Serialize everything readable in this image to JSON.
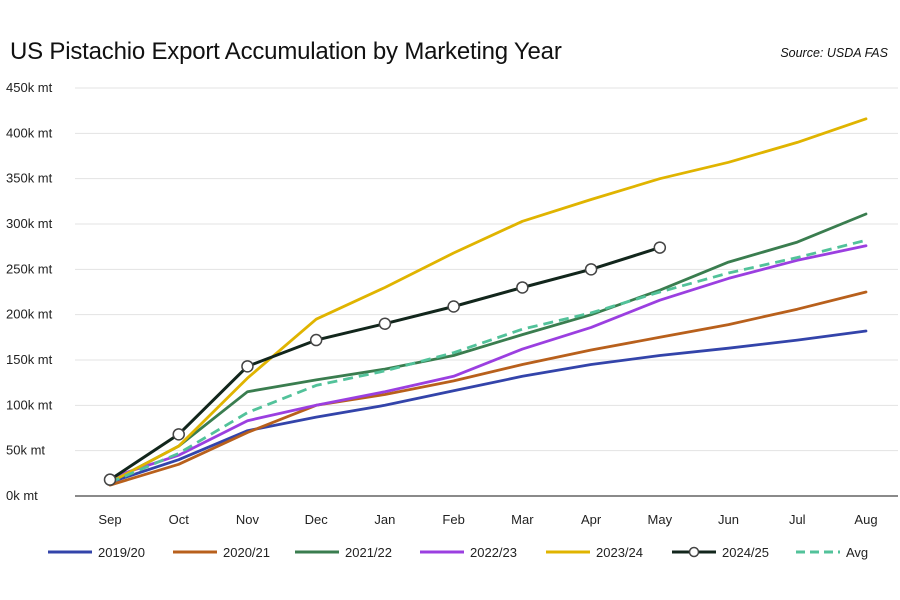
{
  "chart_data": {
    "type": "line",
    "title": "US Pistachio Export Accumulation by Marketing Year",
    "source": "Source: USDA FAS",
    "xlabel": "",
    "ylabel": "",
    "x": [
      "Sep",
      "Oct",
      "Nov",
      "Dec",
      "Jan",
      "Feb",
      "Mar",
      "Apr",
      "May",
      "Jun",
      "Jul",
      "Aug"
    ],
    "ylim": [
      0,
      450000
    ],
    "yticks": [
      0,
      50000,
      100000,
      150000,
      200000,
      250000,
      300000,
      350000,
      400000,
      450000
    ],
    "ytick_labels": [
      "0k mt",
      "50k mt",
      "100k mt",
      "150k mt",
      "200k mt",
      "250k mt",
      "300k mt",
      "350k mt",
      "400k mt",
      "450k mt"
    ],
    "grid": "horizontal",
    "legend_position": "bottom",
    "series": [
      {
        "name": "2019/20",
        "color": "#3344aa",
        "style": "solid",
        "markers": false,
        "values": [
          15000,
          40000,
          72000,
          87000,
          100000,
          116000,
          132000,
          145000,
          155000,
          163000,
          172000,
          182000
        ]
      },
      {
        "name": "2020/21",
        "color": "#b8601c",
        "style": "solid",
        "markers": false,
        "values": [
          12000,
          35000,
          70000,
          100000,
          112000,
          127000,
          145000,
          161000,
          175000,
          189000,
          206000,
          225000
        ]
      },
      {
        "name": "2021/22",
        "color": "#3a7d4f",
        "style": "solid",
        "markers": false,
        "values": [
          15000,
          55000,
          115000,
          128000,
          140000,
          155000,
          178000,
          200000,
          227000,
          258000,
          280000,
          311000
        ]
      },
      {
        "name": "2022/23",
        "color": "#9b3fe0",
        "style": "solid",
        "markers": false,
        "values": [
          20000,
          45000,
          83000,
          100000,
          115000,
          132000,
          162000,
          186000,
          216000,
          240000,
          260000,
          276000
        ]
      },
      {
        "name": "2023/24",
        "color": "#e0b400",
        "style": "solid",
        "markers": false,
        "values": [
          15000,
          55000,
          130000,
          195000,
          230000,
          268000,
          303000,
          327000,
          350000,
          368000,
          390000,
          416000
        ]
      },
      {
        "name": "2024/25",
        "color": "#12261c",
        "style": "solid",
        "markers": true,
        "values": [
          18000,
          68000,
          143000,
          172000,
          190000,
          209000,
          230000,
          250000,
          274000,
          null,
          null,
          null
        ]
      },
      {
        "name": "Avg",
        "color": "#52c29a",
        "style": "dashed",
        "markers": false,
        "values": [
          15000,
          47000,
          92000,
          122000,
          138000,
          158000,
          184000,
          202000,
          225000,
          246000,
          263000,
          282000
        ]
      }
    ]
  }
}
